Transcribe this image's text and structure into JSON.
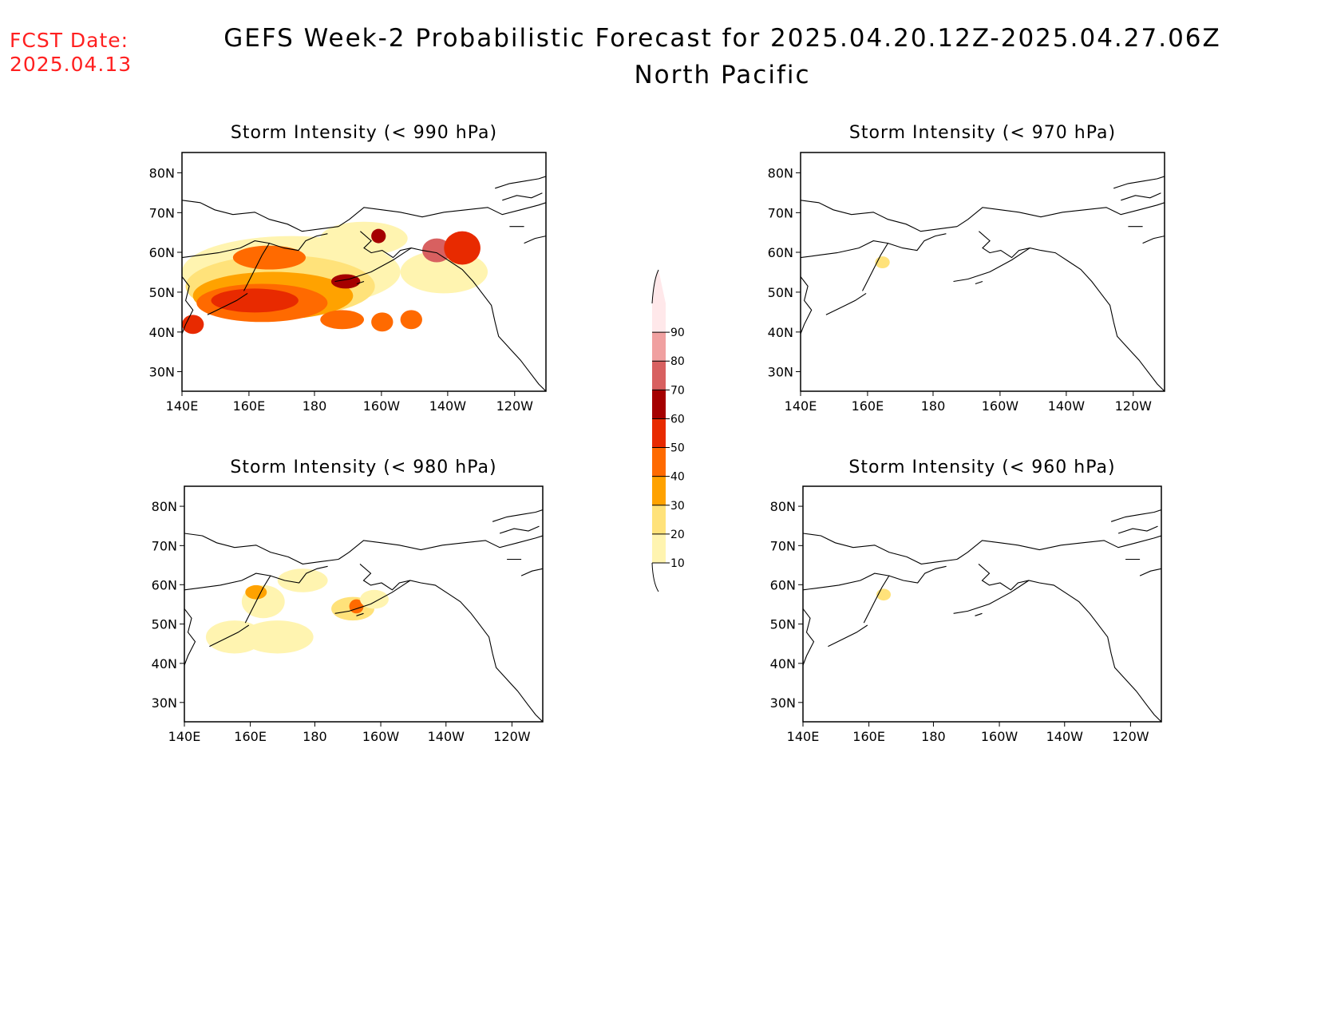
{
  "header": {
    "fcst_label": "FCST Date:",
    "fcst_date": "2025.04.13",
    "title": "GEFS Week-2 Probabilistic Forecast for 2025.04.20.12Z-2025.04.27.06Z",
    "region": "North Pacific"
  },
  "axes": {
    "lat_labels": [
      "80N",
      "70N",
      "60N",
      "50N",
      "40N",
      "30N"
    ],
    "lon_labels": [
      "140E",
      "160E",
      "180",
      "160W",
      "140W",
      "120W"
    ]
  },
  "panels": [
    {
      "title": "Storm Intensity (< 990 hPa)"
    },
    {
      "title": "Storm Intensity (< 970 hPa)"
    },
    {
      "title": "Storm Intensity (< 980 hPa)"
    },
    {
      "title": "Storm Intensity (< 960 hPa)"
    }
  ],
  "colorbar": {
    "levels": [
      "10",
      "20",
      "30",
      "40",
      "50",
      "60",
      "70",
      "80",
      "90"
    ],
    "colors": [
      "#fff4b0",
      "#ffe27a",
      "#ffa200",
      "#ff6a00",
      "#e82a00",
      "#a50000",
      "#d86060",
      "#f0a0a0",
      "#ffe8ea"
    ]
  }
}
